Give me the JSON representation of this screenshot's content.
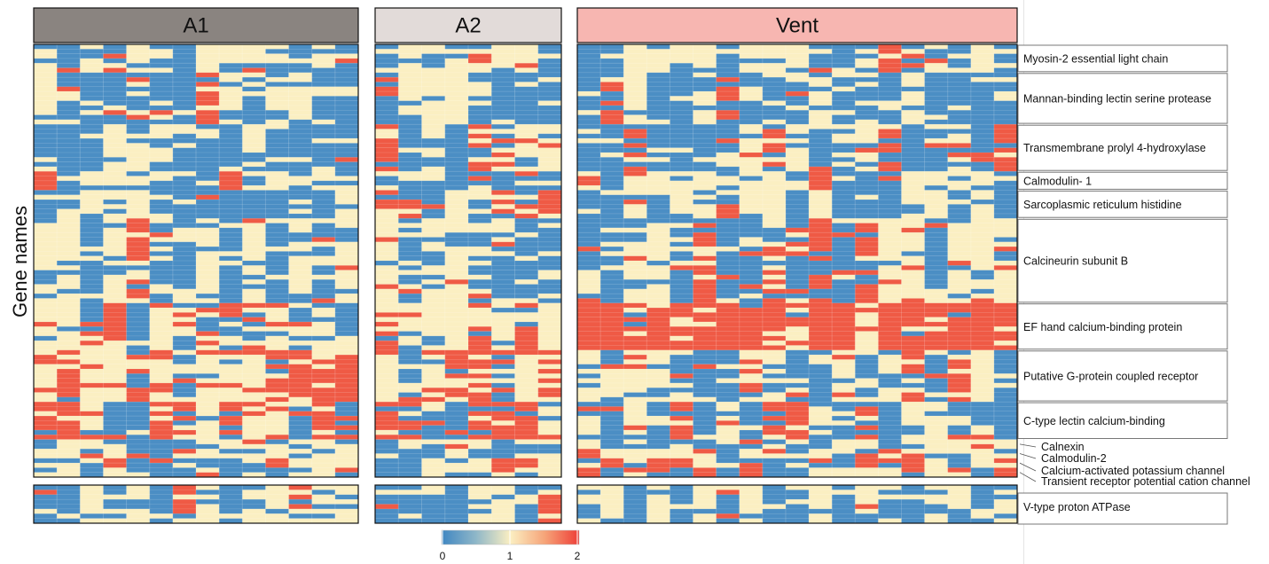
{
  "chart_data": {
    "type": "heatmap",
    "ylabel": "Gene names",
    "groups": [
      {
        "name": "A1",
        "color": "#8a8480",
        "columns": 14
      },
      {
        "name": "A2",
        "color": "#e2dbd9",
        "columns": 8
      },
      {
        "name": "Vent",
        "color": "#f7b6b1",
        "columns": 19
      }
    ],
    "row_annotations_main": [
      {
        "label": "Myosin-2 essential light chain",
        "rows": 6
      },
      {
        "label": "Mannan-binding lectin serine protease",
        "rows": 11
      },
      {
        "label": "Transmembrane prolyl 4-hydroxylase",
        "rows": 10
      },
      {
        "label": "Calmodulin- 1",
        "rows": 4
      },
      {
        "label": "Sarcoplasmic reticulum histidine",
        "rows": 6
      },
      {
        "label": "Calcineurin subunit B",
        "rows": 18
      },
      {
        "label": "EF hand calcium-binding protein",
        "rows": 10
      },
      {
        "label": "Putative G-protein coupled receptor",
        "rows": 11
      },
      {
        "label": "C-type lectin calcium-binding",
        "rows": 8
      },
      {
        "label": "Calnexin",
        "rows": 2
      },
      {
        "label": "Calmodulin-2",
        "rows": 2
      },
      {
        "label": "Calcium-activated potassium channel",
        "rows": 2
      },
      {
        "label": "Transient receptor potential cation channel",
        "rows": 2
      }
    ],
    "row_annotations_bottom": [
      {
        "label": "V-type proton ATPase",
        "rows": 8
      }
    ],
    "colorbar": {
      "ticks": [
        "0",
        "1",
        "2"
      ],
      "min": 0,
      "max": 2,
      "colors": [
        "#4b8ec4",
        "#fbefc2",
        "#ef4d3f"
      ]
    },
    "value_colors": {
      "0": "#4b8ec4",
      "1": "#fbefc2",
      "2": "#ef5a45"
    }
  }
}
